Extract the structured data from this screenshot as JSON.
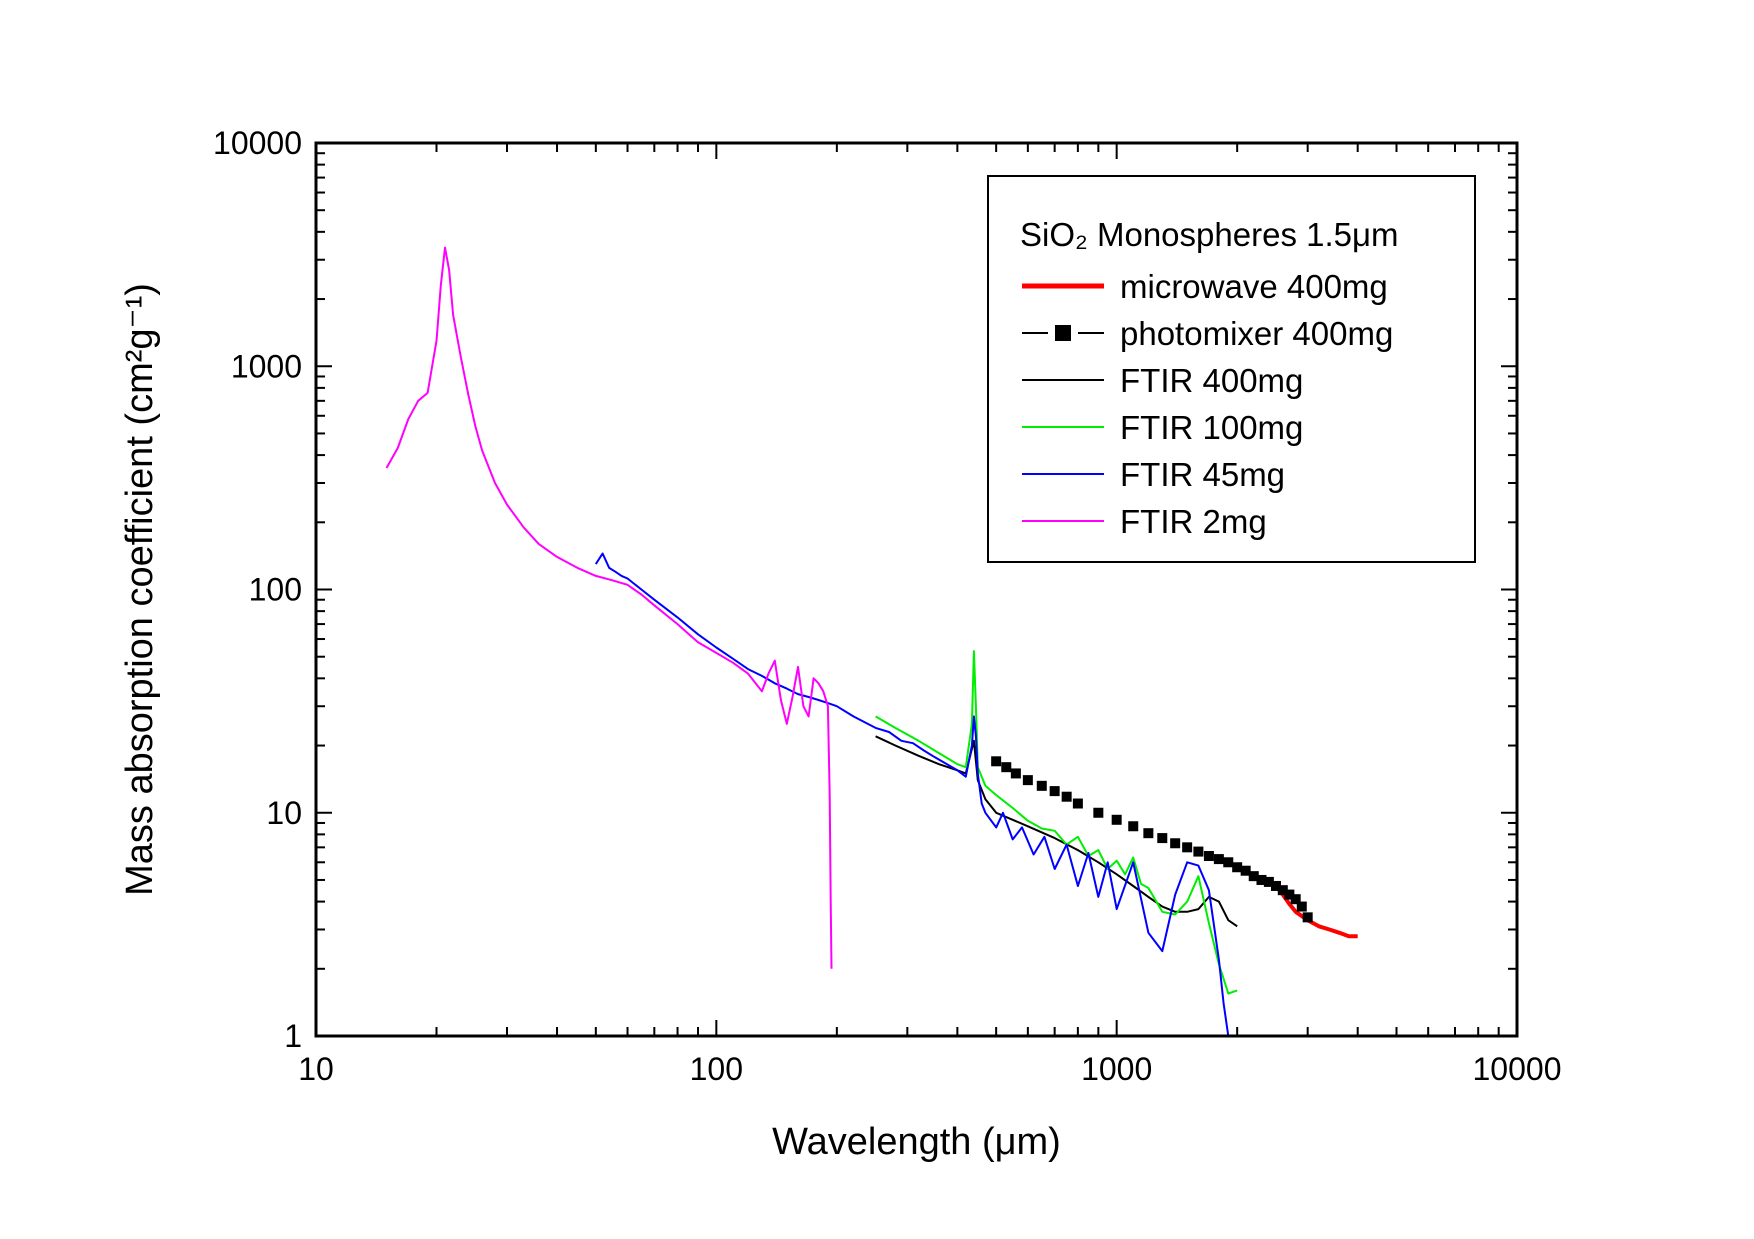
{
  "chart_data": {
    "type": "line",
    "xlabel": "Wavelength (μm)",
    "ylabel": "Mass absorption coefficient (cm²g⁻¹)",
    "xscale": "log",
    "yscale": "log",
    "xlim": [
      10,
      10000
    ],
    "ylim": [
      1,
      10000
    ],
    "x_ticks": [
      "10",
      "100",
      "1000",
      "10000"
    ],
    "y_ticks": [
      "1",
      "10",
      "100",
      "1000",
      "10000"
    ],
    "grid": false,
    "legend_position": "top-right",
    "legend_title": "SiO₂ Monospheres 1.5μm",
    "series": [
      {
        "name": "microwave 400mg",
        "color": "#ff0000",
        "style": "thick-line",
        "x": [
          2400,
          2500,
          2600,
          2700,
          2800,
          3000,
          3200,
          3400,
          3600,
          3800,
          4000
        ],
        "y": [
          5.0,
          4.7,
          4.3,
          3.9,
          3.6,
          3.3,
          3.1,
          3.0,
          2.9,
          2.8,
          2.8
        ]
      },
      {
        "name": "photomixer 400mg",
        "color": "#000000",
        "style": "line-square",
        "x": [
          500,
          530,
          560,
          600,
          650,
          700,
          750,
          800,
          900,
          1000,
          1100,
          1200,
          1300,
          1400,
          1500,
          1600,
          1700,
          1800,
          1900,
          2000,
          2100,
          2200,
          2300,
          2400,
          2500,
          2600,
          2700,
          2800,
          2900,
          3000
        ],
        "y": [
          17,
          16,
          15,
          14,
          13.2,
          12.5,
          11.8,
          11,
          10,
          9.3,
          8.7,
          8.1,
          7.7,
          7.3,
          7.0,
          6.7,
          6.4,
          6.2,
          6.0,
          5.7,
          5.5,
          5.2,
          5.0,
          4.9,
          4.7,
          4.5,
          4.3,
          4.1,
          3.8,
          3.4
        ]
      },
      {
        "name": "FTIR 400mg",
        "color": "#000000",
        "style": "line",
        "x": [
          250,
          280,
          320,
          360,
          400,
          420,
          440,
          450,
          470,
          500,
          550,
          600,
          700,
          800,
          900,
          1000,
          1100,
          1200,
          1300,
          1400,
          1500,
          1600,
          1700,
          1800,
          1900,
          2000
        ],
        "y": [
          22,
          20,
          18,
          16.5,
          15.5,
          15,
          21,
          14,
          11.5,
          10,
          9.3,
          8.7,
          7.7,
          6.8,
          6.0,
          5.3,
          4.7,
          4.2,
          3.8,
          3.6,
          3.6,
          3.7,
          4.2,
          4.0,
          3.3,
          3.1
        ]
      },
      {
        "name": "FTIR 100mg",
        "color": "#00ee00",
        "style": "line",
        "x": [
          250,
          280,
          320,
          360,
          400,
          420,
          435,
          440,
          445,
          450,
          470,
          500,
          550,
          600,
          650,
          700,
          750,
          800,
          850,
          900,
          950,
          1000,
          1050,
          1100,
          1150,
          1200,
          1300,
          1400,
          1500,
          1600,
          1700,
          1800,
          1900,
          2000
        ],
        "y": [
          27,
          24,
          21,
          18.5,
          16.5,
          16,
          25,
          53,
          30,
          16,
          13.2,
          12,
          10.5,
          9.2,
          8.5,
          8.3,
          7.2,
          7.8,
          6.4,
          6.8,
          5.6,
          6.1,
          5.3,
          6.3,
          4.8,
          4.6,
          3.6,
          3.5,
          4.0,
          5.2,
          3.2,
          2.1,
          1.55,
          1.6
        ]
      },
      {
        "name": "FTIR 45mg",
        "color": "#0000ff",
        "style": "line",
        "x": [
          50,
          52,
          54,
          56,
          58,
          60,
          65,
          70,
          80,
          90,
          100,
          110,
          120,
          130,
          140,
          150,
          160,
          170,
          180,
          190,
          200,
          220,
          250,
          270,
          290,
          310,
          330,
          350,
          370,
          400,
          420,
          435,
          440,
          445,
          450,
          460,
          470,
          500,
          520,
          550,
          580,
          620,
          660,
          700,
          750,
          800,
          850,
          900,
          950,
          1000,
          1100,
          1200,
          1300,
          1400,
          1500,
          1600,
          1700,
          1800,
          1850,
          1900
        ],
        "y": [
          130,
          145,
          125,
          120,
          115,
          112,
          100,
          90,
          75,
          63,
          55,
          49,
          44,
          41,
          38,
          36,
          34,
          33,
          32,
          31,
          30,
          27,
          24,
          23,
          21,
          20.5,
          19,
          17.8,
          16.8,
          15.5,
          14.5,
          20,
          27,
          22,
          15,
          11,
          10,
          8.6,
          10,
          7.6,
          8.6,
          6.5,
          7.8,
          5.6,
          7.2,
          4.7,
          6.6,
          4.2,
          6.0,
          3.7,
          6.0,
          2.9,
          2.4,
          4.3,
          6.0,
          5.8,
          4.5,
          2.2,
          1.4,
          1.0
        ]
      },
      {
        "name": "FTIR 2mg",
        "color": "#ff00ff",
        "style": "line",
        "x": [
          15,
          16,
          17,
          18,
          19,
          20,
          20.5,
          21,
          21.5,
          22,
          23,
          24,
          25,
          26,
          28,
          30,
          33,
          36,
          40,
          45,
          50,
          55,
          60,
          65,
          70,
          80,
          90,
          100,
          110,
          120,
          130,
          135,
          140,
          145,
          150,
          155,
          160,
          165,
          170,
          175,
          180,
          185,
          190,
          192,
          193,
          194
        ],
        "y": [
          350,
          430,
          580,
          700,
          760,
          1300,
          2300,
          3400,
          2700,
          1700,
          1100,
          750,
          540,
          420,
          300,
          240,
          190,
          160,
          140,
          125,
          115,
          110,
          105,
          95,
          85,
          70,
          58,
          52,
          47,
          42,
          35,
          42,
          48,
          32,
          25,
          33,
          45,
          30,
          27,
          40,
          38,
          35,
          30,
          12,
          4,
          2
        ]
      }
    ]
  }
}
